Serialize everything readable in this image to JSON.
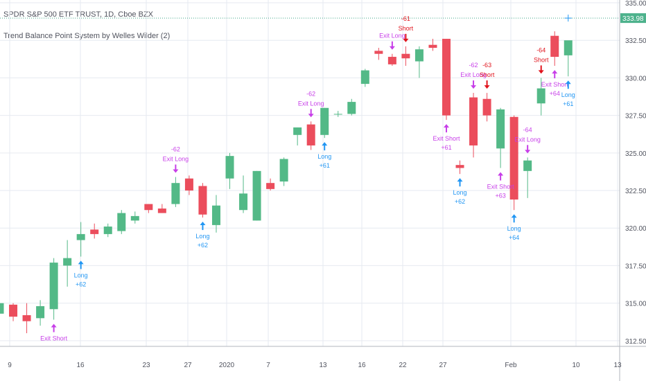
{
  "header": {
    "title": "SPDR S&P 500 ETF TRUST, 1D, Cboe BZX",
    "indicator": "Trend Balance Point System by Welles Wilder (2)"
  },
  "colors": {
    "up": "#53b987",
    "down": "#eb4d5c",
    "signal_long": "#2196f3",
    "signal_exit": "#c73ee8",
    "signal_short": "#e0131c",
    "last_price_bg": "#4db28c",
    "last_price_line": "#3fa888",
    "grid": "#e6eaf0",
    "axis_text": "#50535e"
  },
  "chart_data": {
    "type": "candlestick",
    "price_axis": {
      "ticks": [
        "312.50",
        "315.00",
        "317.50",
        "320.00",
        "322.50",
        "325.00",
        "327.50",
        "330.00",
        "332.50",
        "335.00"
      ],
      "range": [
        311.9,
        335.9
      ],
      "last_price": "333.98"
    },
    "time_axis": {
      "labels": [
        "9",
        "16",
        "23",
        "27",
        "2020",
        "7",
        "13",
        "16",
        "22",
        "27",
        "Feb",
        "10",
        "13"
      ]
    },
    "candles": [
      {
        "date": "2019-12-04",
        "o": 314.3,
        "h": 315.1,
        "l": 313.7,
        "c": 315.0
      },
      {
        "date": "2019-12-05",
        "o": 314.9,
        "h": 315.0,
        "l": 313.8,
        "c": 314.1
      },
      {
        "date": "2019-12-06",
        "o": 314.2,
        "h": 315.0,
        "l": 313.0,
        "c": 313.8
      },
      {
        "date": "2019-12-09",
        "o": 314.0,
        "h": 315.2,
        "l": 313.5,
        "c": 314.8
      },
      {
        "date": "2019-12-10",
        "o": 314.6,
        "h": 318.0,
        "l": 313.9,
        "c": 317.7
      },
      {
        "date": "2019-12-11",
        "o": 317.5,
        "h": 319.2,
        "l": 316.1,
        "c": 318.0
      },
      {
        "date": "2019-12-12",
        "o": 319.2,
        "h": 320.4,
        "l": 318.1,
        "c": 319.6
      },
      {
        "date": "2019-12-13",
        "o": 319.9,
        "h": 320.3,
        "l": 319.3,
        "c": 319.6
      },
      {
        "date": "2019-12-16",
        "o": 319.6,
        "h": 320.3,
        "l": 319.4,
        "c": 320.1
      },
      {
        "date": "2019-12-17",
        "o": 319.8,
        "h": 321.2,
        "l": 319.6,
        "c": 321.0
      },
      {
        "date": "2019-12-18",
        "o": 320.5,
        "h": 321.1,
        "l": 320.3,
        "c": 320.8
      },
      {
        "date": "2019-12-19",
        "o": 321.6,
        "h": 321.6,
        "l": 321.0,
        "c": 321.2
      },
      {
        "date": "2019-12-20",
        "o": 321.3,
        "h": 321.6,
        "l": 321.0,
        "c": 321.0
      },
      {
        "date": "2019-12-23",
        "o": 321.6,
        "h": 323.4,
        "l": 321.4,
        "c": 323.0
      },
      {
        "date": "2019-12-24",
        "o": 323.3,
        "h": 323.5,
        "l": 322.2,
        "c": 322.5
      },
      {
        "date": "2019-12-26",
        "o": 322.8,
        "h": 323.0,
        "l": 320.7,
        "c": 320.9
      },
      {
        "date": "2019-12-27",
        "o": 320.2,
        "h": 322.2,
        "l": 319.7,
        "c": 321.5
      },
      {
        "date": "2019-12-30",
        "o": 323.3,
        "h": 325.0,
        "l": 322.6,
        "c": 324.8
      },
      {
        "date": "2019-12-31",
        "o": 321.2,
        "h": 323.5,
        "l": 321.0,
        "c": 322.3
      },
      {
        "date": "2020-01-02",
        "o": 320.5,
        "h": 323.8,
        "l": 320.5,
        "c": 323.8
      },
      {
        "date": "2020-01-03",
        "o": 323.0,
        "h": 323.3,
        "l": 322.5,
        "c": 322.6
      },
      {
        "date": "2020-01-06",
        "o": 323.1,
        "h": 324.7,
        "l": 322.8,
        "c": 324.6
      },
      {
        "date": "2020-01-07",
        "o": 326.2,
        "h": 326.7,
        "l": 325.5,
        "c": 326.7
      },
      {
        "date": "2020-01-08",
        "o": 326.9,
        "h": 327.1,
        "l": 325.2,
        "c": 325.5
      },
      {
        "date": "2020-01-09",
        "o": 326.2,
        "h": 328.0,
        "l": 326.0,
        "c": 328.0
      },
      {
        "date": "2020-01-10",
        "o": 327.6,
        "h": 327.8,
        "l": 327.4,
        "c": 327.6
      },
      {
        "date": "2020-01-13",
        "o": 327.6,
        "h": 328.6,
        "l": 327.5,
        "c": 328.4
      },
      {
        "date": "2020-01-14",
        "o": 329.6,
        "h": 330.6,
        "l": 329.4,
        "c": 330.5
      },
      {
        "date": "2020-01-15",
        "o": 331.8,
        "h": 332.0,
        "l": 331.2,
        "c": 331.6
      },
      {
        "date": "2020-01-16",
        "o": 331.4,
        "h": 331.6,
        "l": 330.8,
        "c": 330.9
      },
      {
        "date": "2020-01-17",
        "o": 331.6,
        "h": 332.1,
        "l": 330.8,
        "c": 331.3
      },
      {
        "date": "2020-01-20",
        "o": 331.1,
        "h": 332.1,
        "l": 330.0,
        "c": 331.9
      },
      {
        "date": "2020-01-21",
        "o": 332.2,
        "h": 332.6,
        "l": 331.8,
        "c": 332.0
      },
      {
        "date": "2020-01-22",
        "o": 332.6,
        "h": 332.6,
        "l": 327.2,
        "c": 327.5
      },
      {
        "date": "2020-01-23",
        "o": 324.2,
        "h": 324.5,
        "l": 323.6,
        "c": 324.0
      },
      {
        "date": "2020-01-24",
        "o": 328.7,
        "h": 329.0,
        "l": 324.7,
        "c": 325.5
      },
      {
        "date": "2020-01-27",
        "o": 328.6,
        "h": 329.0,
        "l": 327.1,
        "c": 327.5
      },
      {
        "date": "2020-01-28",
        "o": 325.3,
        "h": 328.0,
        "l": 324.0,
        "c": 327.9
      },
      {
        "date": "2020-01-29",
        "o": 327.4,
        "h": 327.5,
        "l": 321.2,
        "c": 321.9
      },
      {
        "date": "2020-01-30",
        "o": 323.8,
        "h": 324.7,
        "l": 322.0,
        "c": 324.5
      },
      {
        "date": "2020-01-31",
        "o": 328.3,
        "h": 330.0,
        "l": 327.5,
        "c": 329.3
      },
      {
        "date": "2020-02-03",
        "o": 332.8,
        "h": 333.1,
        "l": 330.8,
        "c": 331.4
      },
      {
        "date": "2020-02-04",
        "o": 331.5,
        "h": 332.4,
        "l": 330.1,
        "c": 332.5
      }
    ],
    "signals": [
      {
        "type": "exit_short",
        "date": "2019-12-10",
        "label": "Exit Short"
      },
      {
        "type": "long",
        "date": "2019-12-12",
        "label": "Long",
        "value": "+62"
      },
      {
        "type": "exit_long",
        "date": "2019-12-23",
        "label": "Exit Long",
        "value": "-62"
      },
      {
        "type": "long",
        "date": "2019-12-26",
        "label": "Long",
        "value": "+62"
      },
      {
        "type": "exit_long",
        "date": "2020-01-08",
        "label": "Exit Long",
        "value": "-62"
      },
      {
        "type": "long",
        "date": "2020-01-09",
        "label": "Long",
        "value": "+61"
      },
      {
        "type": "exit_long",
        "date": "2020-01-16",
        "label": "Exit Long"
      },
      {
        "type": "short",
        "date": "2020-01-17",
        "label": "Short",
        "value": "-61"
      },
      {
        "type": "exit_short",
        "date": "2020-01-22",
        "label": "Exit Short",
        "value": "+61"
      },
      {
        "type": "long",
        "date": "2020-01-23",
        "label": "Long",
        "value": "+62"
      },
      {
        "type": "exit_long",
        "date": "2020-01-24",
        "label": "Exit Long",
        "value": "-62"
      },
      {
        "type": "short",
        "date": "2020-01-27",
        "label": "Short",
        "value": "-63"
      },
      {
        "type": "exit_short",
        "date": "2020-01-28",
        "label": "Exit Short",
        "value": "+63"
      },
      {
        "type": "long",
        "date": "2020-01-29",
        "label": "Long",
        "value": "+64"
      },
      {
        "type": "exit_long",
        "date": "2020-01-30",
        "label": "Exit Long",
        "value": "-64"
      },
      {
        "type": "short",
        "date": "2020-01-31",
        "label": "Short",
        "value": "-64"
      },
      {
        "type": "exit_short",
        "date": "2020-02-03",
        "label": "Exit Short",
        "value": "+64"
      },
      {
        "type": "long",
        "date": "2020-02-04",
        "label": "Long",
        "value": "+61"
      }
    ]
  }
}
